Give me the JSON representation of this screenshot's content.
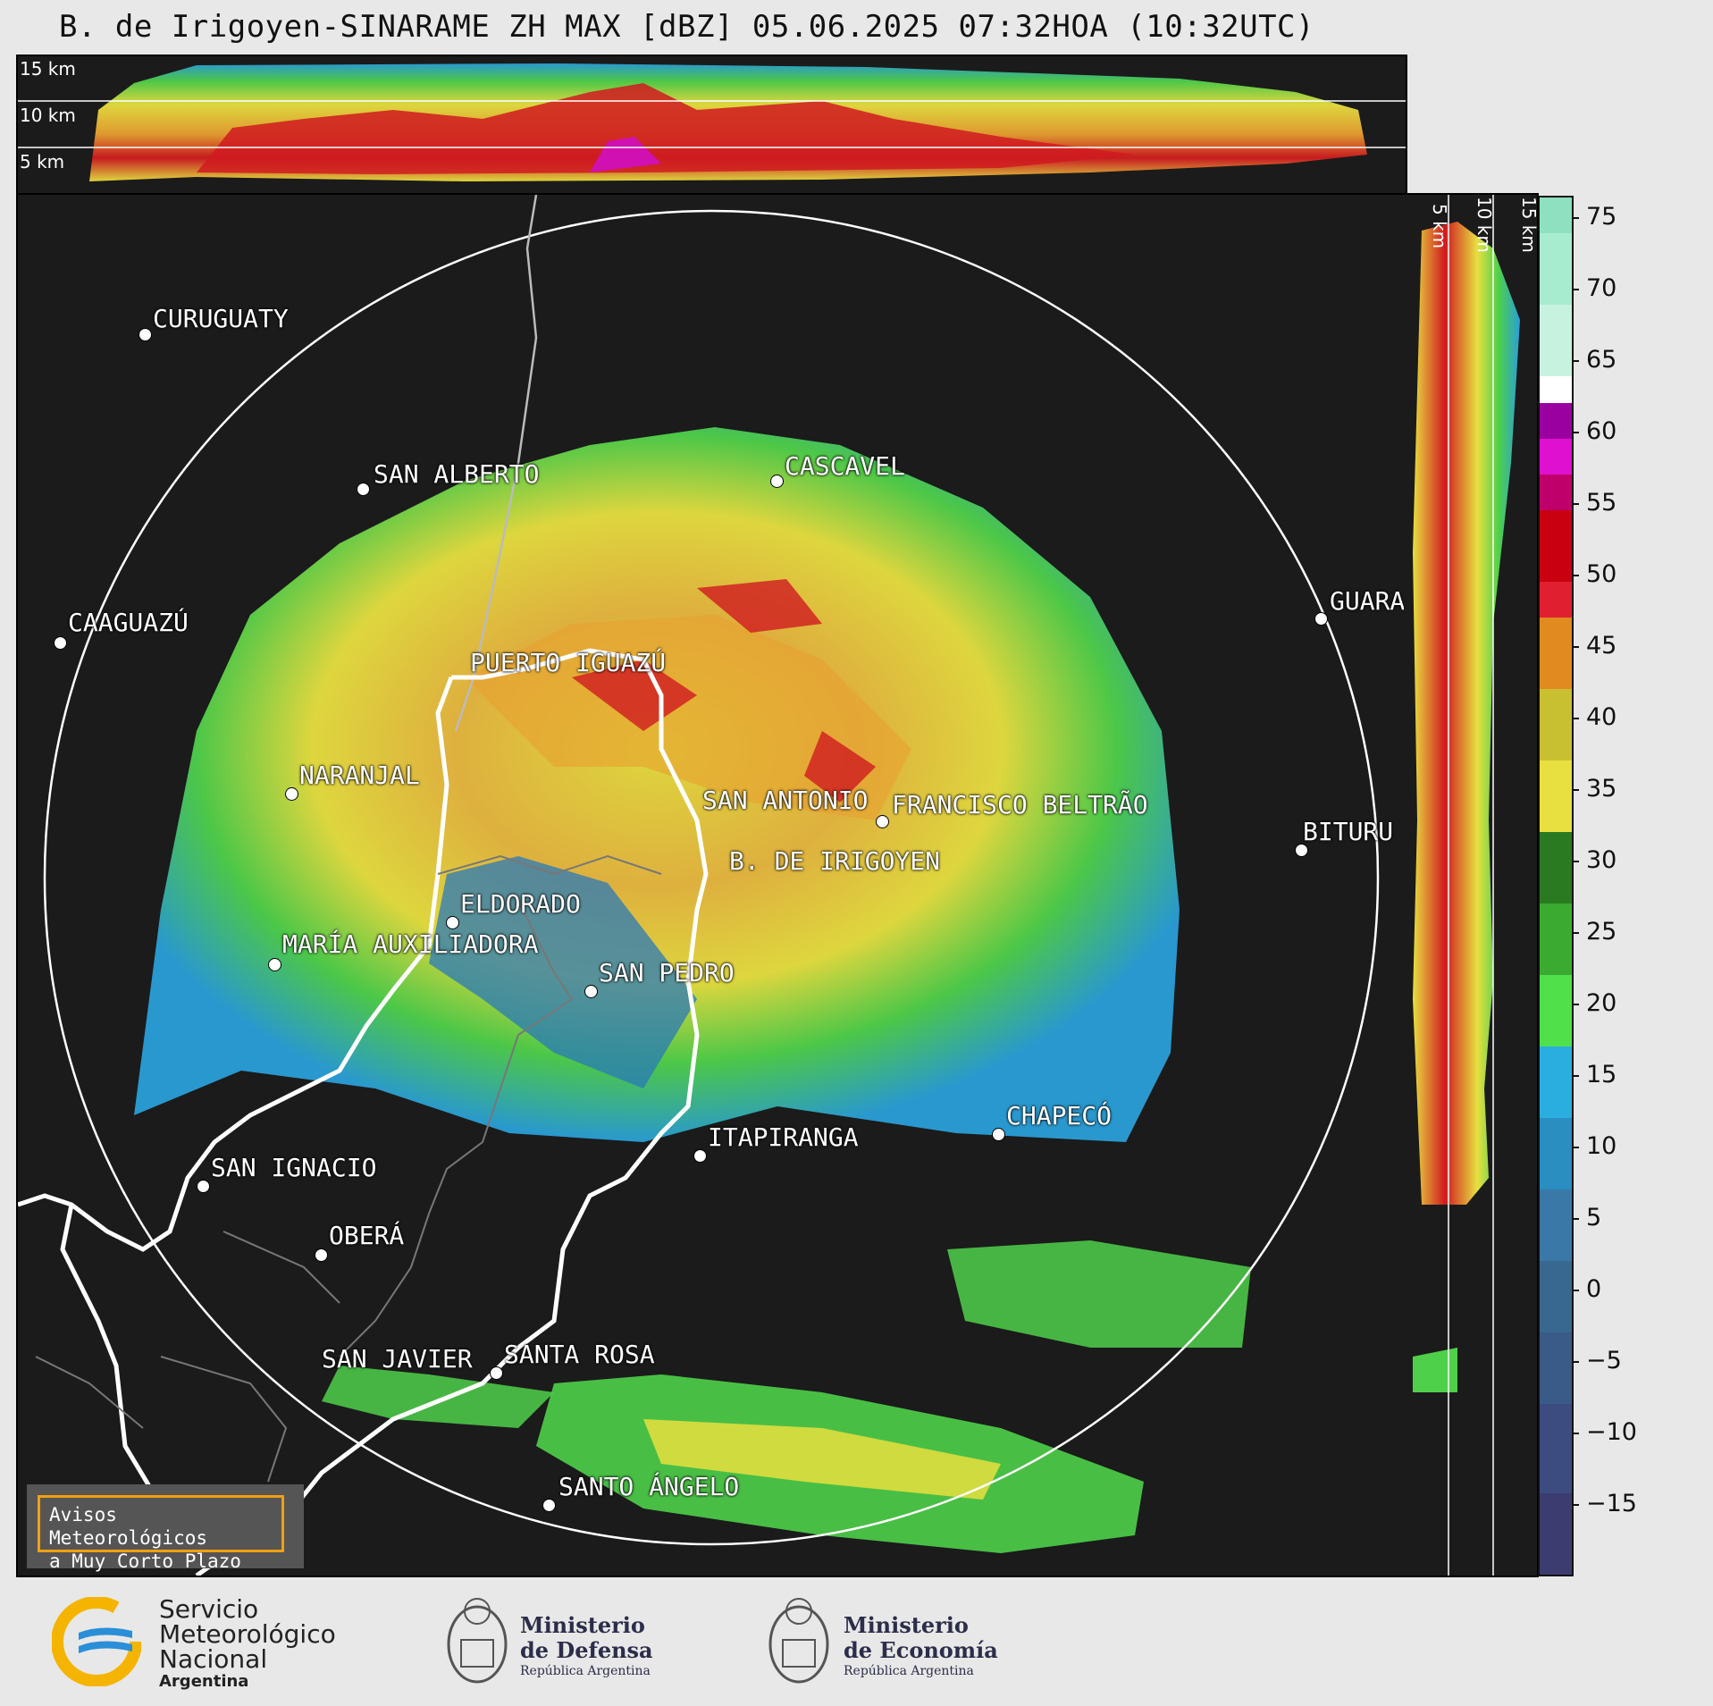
{
  "title": "B. de Irigoyen-SINARAME ZH MAX [dBZ] 05.06.2025 07:32HOA (10:32UTC)",
  "top_panel_labels": [
    "15 km",
    "10 km",
    "5 km"
  ],
  "side_panel_labels": [
    "5 km",
    "10 km",
    "15 km"
  ],
  "colorbar": {
    "ticks": [
      "75",
      "70",
      "65",
      "60",
      "55",
      "50",
      "45",
      "40",
      "35",
      "30",
      "25",
      "20",
      "15",
      "10",
      "5",
      "0",
      "−5",
      "−10",
      "−15"
    ]
  },
  "cities": [
    {
      "name": "CURUGUATY"
    },
    {
      "name": "SAN ALBERTO"
    },
    {
      "name": "CASCAVEL"
    },
    {
      "name": "CAAGUAZÚ"
    },
    {
      "name": "GUARA"
    },
    {
      "name": "PUERTO IGUAZÚ"
    },
    {
      "name": "NARANJAL"
    },
    {
      "name": "SAN ANTONIO"
    },
    {
      "name": "FRANCISCO BELTRÃO"
    },
    {
      "name": "B. DE IRIGOYEN"
    },
    {
      "name": "BITURU"
    },
    {
      "name": "ELDORADO"
    },
    {
      "name": "MARÍA AUXILIADORA"
    },
    {
      "name": "SAN PEDRO"
    },
    {
      "name": "CHAPECÓ"
    },
    {
      "name": "ITAPIRANGA"
    },
    {
      "name": "SAN IGNACIO"
    },
    {
      "name": "OBERÁ"
    },
    {
      "name": "SAN JAVIER"
    },
    {
      "name": "SANTA ROSA"
    },
    {
      "name": "SANTO ÁNGELO"
    }
  ],
  "warning_box": {
    "line1": "Avisos Meteorológicos",
    "line2": "a Muy Corto Plazo"
  },
  "footer": {
    "smn_line1": "Servicio",
    "smn_line2": "Meteorológico",
    "smn_line3": "Nacional",
    "smn_line4": "Argentina",
    "defensa_line1": "Ministerio",
    "defensa_line2": "de Defensa",
    "defensa_line3": "República Argentina",
    "economia_line1": "Ministerio",
    "economia_line2": "de Economía",
    "economia_line3": "República Argentina"
  },
  "colors": {
    "panel_bg": "#1b1b1b",
    "page_bg": "#e8e8e8",
    "warn_border": "#f0a010",
    "smn_blue": "#2a8fd8",
    "smn_yellow": "#f5b400"
  }
}
